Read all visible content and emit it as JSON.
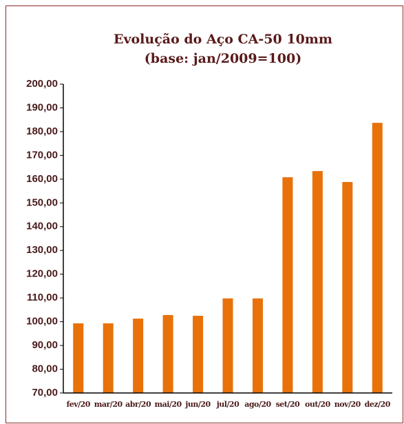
{
  "chart_data": {
    "type": "bar",
    "title": "Evolução do Aço CA-50 10mm",
    "subtitle": "(base: jan/2009=100)",
    "categories": [
      "fev/20",
      "mar/20",
      "abr/20",
      "mai/20",
      "jun/20",
      "jul/20",
      "ago/20",
      "set/20",
      "out/20",
      "nov/20",
      "dez/20"
    ],
    "values": [
      99.3,
      99.3,
      101.3,
      102.8,
      102.5,
      109.8,
      109.8,
      160.8,
      163.4,
      158.8,
      183.7
    ],
    "color": "#e8710a",
    "ylim": [
      70,
      200
    ],
    "yticks": [
      {
        "value": 70,
        "label": "70,00"
      },
      {
        "value": 80,
        "label": "80,00"
      },
      {
        "value": 90,
        "label": "90,00"
      },
      {
        "value": 100,
        "label": "100,00"
      },
      {
        "value": 110,
        "label": "110,00"
      },
      {
        "value": 120,
        "label": "120,00"
      },
      {
        "value": 130,
        "label": "130,00"
      },
      {
        "value": 140,
        "label": "140,00"
      },
      {
        "value": 150,
        "label": "150,00"
      },
      {
        "value": 160,
        "label": "160,00"
      },
      {
        "value": 170,
        "label": "170,00"
      },
      {
        "value": 180,
        "label": "180,00"
      },
      {
        "value": 190,
        "label": "190,00"
      },
      {
        "value": 200,
        "label": "200,00"
      }
    ],
    "grid": false
  }
}
